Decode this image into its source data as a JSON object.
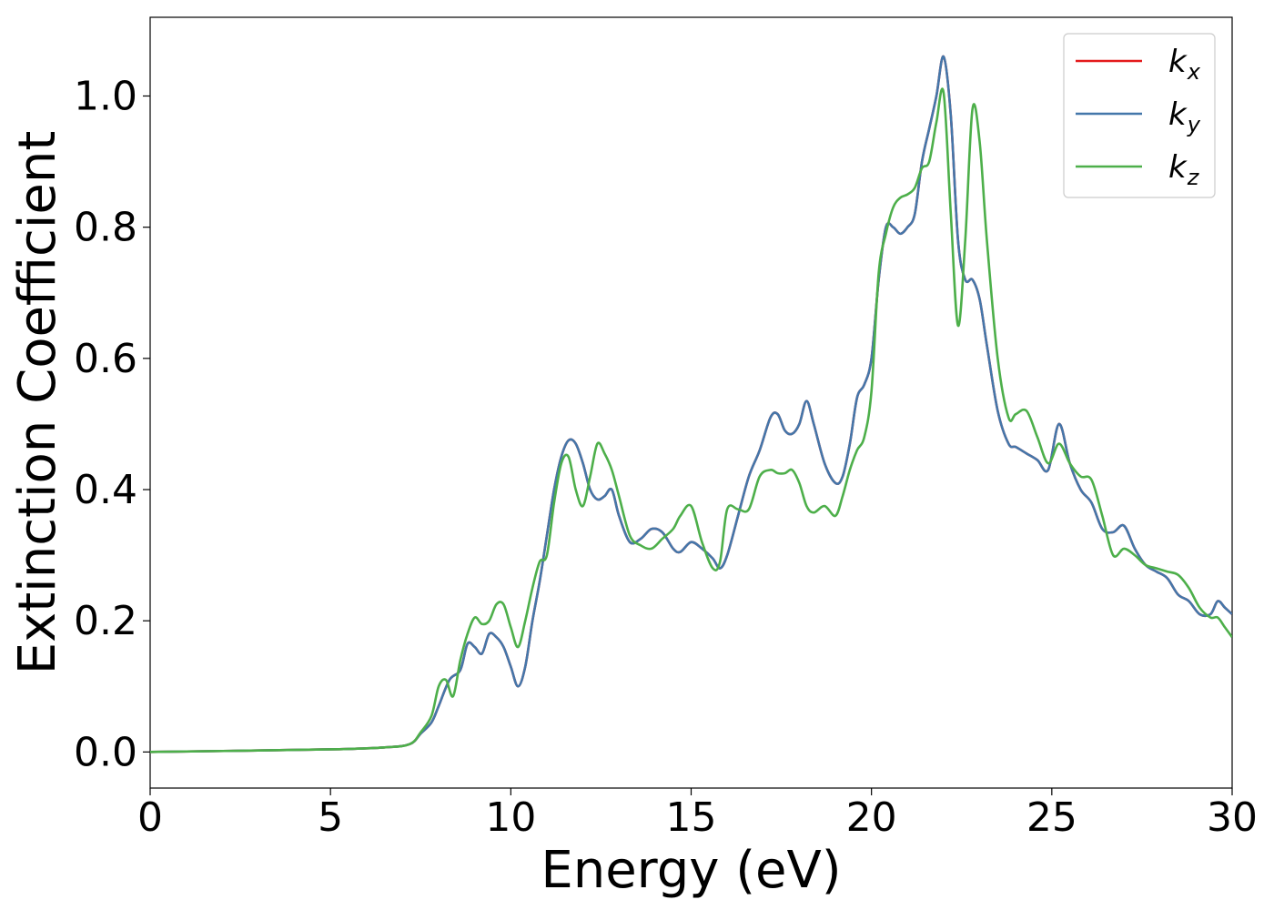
{
  "chart_data": {
    "type": "line",
    "title": "",
    "xlabel": "Energy (eV)",
    "ylabel": "Extinction Coefficient",
    "xlim": [
      0,
      30
    ],
    "ylim": [
      -0.055,
      1.12
    ],
    "xticks": [
      0,
      5,
      10,
      15,
      20,
      25,
      30
    ],
    "xtick_labels": [
      "0",
      "5",
      "10",
      "15",
      "20",
      "25",
      "30"
    ],
    "yticks": [
      0.0,
      0.2,
      0.4,
      0.6,
      0.8,
      1.0
    ],
    "ytick_labels": [
      "0.0",
      "0.2",
      "0.4",
      "0.6",
      "0.8",
      "1.0"
    ],
    "grid": false,
    "legend_position": "top-right",
    "series": [
      {
        "name": "kx",
        "label_main": "k",
        "label_sub": "x",
        "color": "#e41a1c",
        "x": [
          0,
          5,
          6.5,
          7.2,
          7.5,
          7.8,
          8.0,
          8.3,
          8.6,
          8.8,
          9.0,
          9.2,
          9.4,
          9.6,
          9.8,
          10.0,
          10.2,
          10.4,
          10.6,
          10.8,
          11.0,
          11.2,
          11.4,
          11.6,
          11.8,
          12.0,
          12.2,
          12.4,
          12.6,
          12.8,
          13.0,
          13.3,
          13.6,
          13.9,
          14.2,
          14.5,
          14.7,
          15.0,
          15.3,
          15.6,
          15.8,
          16.0,
          16.3,
          16.6,
          16.9,
          17.2,
          17.4,
          17.6,
          17.8,
          18.0,
          18.2,
          18.4,
          18.7,
          19.0,
          19.2,
          19.4,
          19.6,
          19.8,
          20.0,
          20.2,
          20.4,
          20.6,
          20.8,
          21.0,
          21.2,
          21.4,
          21.6,
          21.8,
          22.0,
          22.2,
          22.4,
          22.6,
          22.8,
          23.0,
          23.2,
          23.5,
          23.8,
          24.0,
          24.3,
          24.6,
          24.9,
          25.2,
          25.5,
          25.8,
          26.1,
          26.4,
          26.7,
          27.0,
          27.3,
          27.6,
          27.9,
          28.2,
          28.5,
          28.8,
          29.1,
          29.4,
          29.6,
          29.8,
          30.0
        ],
        "y": [
          0.0,
          0.004,
          0.007,
          0.012,
          0.028,
          0.045,
          0.07,
          0.11,
          0.125,
          0.165,
          0.16,
          0.15,
          0.18,
          0.175,
          0.16,
          0.13,
          0.1,
          0.13,
          0.2,
          0.26,
          0.33,
          0.4,
          0.45,
          0.475,
          0.47,
          0.44,
          0.4,
          0.385,
          0.39,
          0.4,
          0.36,
          0.32,
          0.325,
          0.34,
          0.335,
          0.31,
          0.305,
          0.32,
          0.31,
          0.295,
          0.28,
          0.3,
          0.36,
          0.42,
          0.46,
          0.51,
          0.515,
          0.49,
          0.485,
          0.5,
          0.535,
          0.5,
          0.44,
          0.41,
          0.42,
          0.47,
          0.54,
          0.56,
          0.6,
          0.72,
          0.8,
          0.8,
          0.79,
          0.8,
          0.82,
          0.9,
          0.95,
          1.0,
          1.06,
          0.97,
          0.78,
          0.72,
          0.72,
          0.69,
          0.62,
          0.52,
          0.47,
          0.465,
          0.455,
          0.445,
          0.43,
          0.5,
          0.44,
          0.4,
          0.38,
          0.34,
          0.335,
          0.345,
          0.31,
          0.285,
          0.275,
          0.265,
          0.24,
          0.23,
          0.21,
          0.21,
          0.23,
          0.22,
          0.21
        ]
      },
      {
        "name": "ky",
        "label_main": "k",
        "label_sub": "y",
        "color": "#4477aa",
        "x": [
          0,
          5,
          6.5,
          7.2,
          7.5,
          7.8,
          8.0,
          8.3,
          8.6,
          8.8,
          9.0,
          9.2,
          9.4,
          9.6,
          9.8,
          10.0,
          10.2,
          10.4,
          10.6,
          10.8,
          11.0,
          11.2,
          11.4,
          11.6,
          11.8,
          12.0,
          12.2,
          12.4,
          12.6,
          12.8,
          13.0,
          13.3,
          13.6,
          13.9,
          14.2,
          14.5,
          14.7,
          15.0,
          15.3,
          15.6,
          15.8,
          16.0,
          16.3,
          16.6,
          16.9,
          17.2,
          17.4,
          17.6,
          17.8,
          18.0,
          18.2,
          18.4,
          18.7,
          19.0,
          19.2,
          19.4,
          19.6,
          19.8,
          20.0,
          20.2,
          20.4,
          20.6,
          20.8,
          21.0,
          21.2,
          21.4,
          21.6,
          21.8,
          22.0,
          22.2,
          22.4,
          22.6,
          22.8,
          23.0,
          23.2,
          23.5,
          23.8,
          24.0,
          24.3,
          24.6,
          24.9,
          25.2,
          25.5,
          25.8,
          26.1,
          26.4,
          26.7,
          27.0,
          27.3,
          27.6,
          27.9,
          28.2,
          28.5,
          28.8,
          29.1,
          29.4,
          29.6,
          29.8,
          30.0
        ],
        "y": [
          0.0,
          0.004,
          0.007,
          0.012,
          0.028,
          0.045,
          0.07,
          0.11,
          0.125,
          0.165,
          0.16,
          0.15,
          0.18,
          0.175,
          0.16,
          0.13,
          0.1,
          0.13,
          0.2,
          0.26,
          0.33,
          0.4,
          0.45,
          0.475,
          0.47,
          0.44,
          0.4,
          0.385,
          0.39,
          0.4,
          0.36,
          0.32,
          0.325,
          0.34,
          0.335,
          0.31,
          0.305,
          0.32,
          0.31,
          0.295,
          0.28,
          0.3,
          0.36,
          0.42,
          0.46,
          0.51,
          0.515,
          0.49,
          0.485,
          0.5,
          0.535,
          0.5,
          0.44,
          0.41,
          0.42,
          0.47,
          0.54,
          0.56,
          0.6,
          0.72,
          0.8,
          0.8,
          0.79,
          0.8,
          0.82,
          0.9,
          0.95,
          1.0,
          1.06,
          0.97,
          0.78,
          0.72,
          0.72,
          0.69,
          0.62,
          0.52,
          0.47,
          0.465,
          0.455,
          0.445,
          0.43,
          0.5,
          0.44,
          0.4,
          0.38,
          0.34,
          0.335,
          0.345,
          0.31,
          0.285,
          0.275,
          0.265,
          0.24,
          0.23,
          0.21,
          0.21,
          0.23,
          0.22,
          0.21
        ]
      },
      {
        "name": "kz",
        "label_main": "k",
        "label_sub": "z",
        "color": "#4daf4a",
        "x": [
          0,
          5,
          6.5,
          7.2,
          7.5,
          7.8,
          8.0,
          8.2,
          8.4,
          8.6,
          8.8,
          9.0,
          9.2,
          9.4,
          9.6,
          9.8,
          10.0,
          10.2,
          10.4,
          10.6,
          10.8,
          11.0,
          11.2,
          11.4,
          11.6,
          11.8,
          12.0,
          12.2,
          12.4,
          12.6,
          12.8,
          13.0,
          13.3,
          13.6,
          13.9,
          14.2,
          14.5,
          14.7,
          15.0,
          15.3,
          15.6,
          15.8,
          16.0,
          16.3,
          16.6,
          16.9,
          17.2,
          17.4,
          17.6,
          17.8,
          18.0,
          18.2,
          18.4,
          18.7,
          19.0,
          19.2,
          19.4,
          19.6,
          19.8,
          20.0,
          20.2,
          20.4,
          20.6,
          20.8,
          21.0,
          21.2,
          21.4,
          21.6,
          21.8,
          22.0,
          22.2,
          22.4,
          22.6,
          22.8,
          23.0,
          23.2,
          23.5,
          23.8,
          24.0,
          24.3,
          24.6,
          24.9,
          25.2,
          25.5,
          25.8,
          26.1,
          26.4,
          26.7,
          27.0,
          27.3,
          27.6,
          27.9,
          28.2,
          28.5,
          28.8,
          29.1,
          29.4,
          29.6,
          29.8,
          30.0
        ],
        "y": [
          0.0,
          0.004,
          0.007,
          0.012,
          0.03,
          0.055,
          0.1,
          0.11,
          0.085,
          0.14,
          0.18,
          0.205,
          0.195,
          0.2,
          0.225,
          0.225,
          0.19,
          0.16,
          0.2,
          0.25,
          0.29,
          0.3,
          0.38,
          0.44,
          0.45,
          0.4,
          0.375,
          0.42,
          0.47,
          0.455,
          0.43,
          0.39,
          0.33,
          0.315,
          0.31,
          0.325,
          0.34,
          0.36,
          0.375,
          0.32,
          0.28,
          0.29,
          0.37,
          0.37,
          0.37,
          0.42,
          0.43,
          0.425,
          0.425,
          0.43,
          0.41,
          0.375,
          0.365,
          0.375,
          0.36,
          0.39,
          0.43,
          0.46,
          0.48,
          0.55,
          0.73,
          0.79,
          0.83,
          0.845,
          0.85,
          0.86,
          0.89,
          0.9,
          0.96,
          1.005,
          0.82,
          0.65,
          0.78,
          0.98,
          0.93,
          0.78,
          0.6,
          0.51,
          0.515,
          0.52,
          0.48,
          0.44,
          0.47,
          0.44,
          0.42,
          0.415,
          0.36,
          0.3,
          0.31,
          0.3,
          0.285,
          0.28,
          0.275,
          0.27,
          0.25,
          0.22,
          0.205,
          0.205,
          0.19,
          0.175
        ]
      }
    ]
  }
}
